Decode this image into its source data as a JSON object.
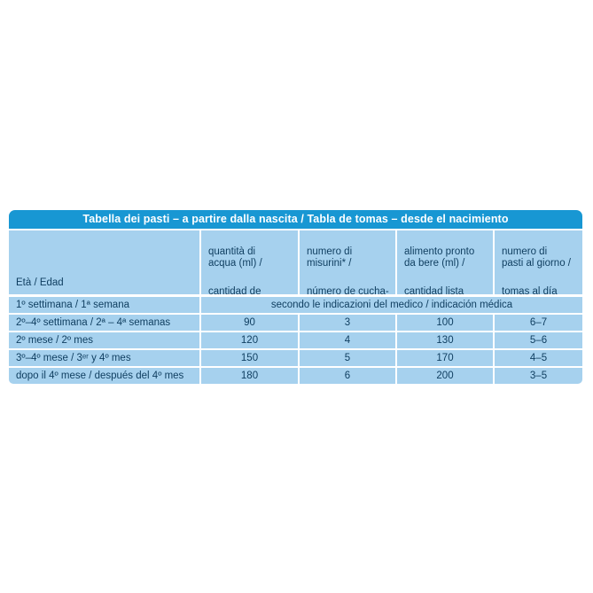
{
  "colors": {
    "title_bar_background": "#1897d3",
    "title_text": "#ffffff",
    "cell_background": "#a6d1ee",
    "body_text": "#0e3d5f",
    "page_background": "#ffffff"
  },
  "table": {
    "title": "Tabella dei pasti – a partire dalla nascita / Tabla de tomas – desde el nacimiento",
    "header": {
      "age_label": "Età / Edad",
      "columns": [
        {
          "it": "quantità di\nacqua (ml) /",
          "es": "cantidad de\nagua (ml)"
        },
        {
          "it": "numero di\nmisurini* /",
          "es": "número de cucha-\nradas medidoras*"
        },
        {
          "it": "alimento pronto\nda bere (ml) /",
          "es": "cantidad lista\npara tomar (ml)"
        },
        {
          "it": "numero di\npasti al giorno /",
          "es": "tomas al día"
        }
      ]
    },
    "first_row": {
      "age": "1º settimana / 1ª semana",
      "note": "secondo le indicazioni del medico / indicación médica"
    },
    "rows": [
      {
        "age": "2º–4º settimana / 2ª – 4ª semanas",
        "values": [
          "90",
          "3",
          "100",
          "6–7"
        ]
      },
      {
        "age": "2º mese / 2º mes",
        "values": [
          "120",
          "4",
          "130",
          "5–6"
        ]
      },
      {
        "age": "3º–4º mese / 3ᵉʳ y 4º mes",
        "values": [
          "150",
          "5",
          "170",
          "4–5"
        ]
      },
      {
        "age": "dopo il 4º mese / después del 4º mes",
        "values": [
          "180",
          "6",
          "200",
          "3–5"
        ]
      }
    ]
  },
  "chart_data": {
    "type": "table",
    "title": "Tabella dei pasti – a partire dalla nascita / Tabla de tomas – desde el nacimiento",
    "columns": [
      "Età / Edad",
      "quantità di acqua (ml) / cantidad de agua (ml)",
      "numero di misurini* / número de cucharadas medidoras*",
      "alimento pronto da bere (ml) / cantidad lista para tomar (ml)",
      "numero di pasti al giorno / tomas al día"
    ],
    "rows": [
      [
        "1º settimana / 1ª semana",
        "secondo le indicazioni del medico / indicación médica"
      ],
      [
        "2º–4º settimana / 2ª – 4ª semanas",
        "90",
        "3",
        "100",
        "6–7"
      ],
      [
        "2º mese / 2º mes",
        "120",
        "4",
        "130",
        "5–6"
      ],
      [
        "3º–4º mese / 3ᵉʳ y 4º mes",
        "150",
        "5",
        "170",
        "4–5"
      ],
      [
        "dopo il 4º mese / después del 4º mes",
        "180",
        "6",
        "200",
        "3–5"
      ]
    ]
  }
}
